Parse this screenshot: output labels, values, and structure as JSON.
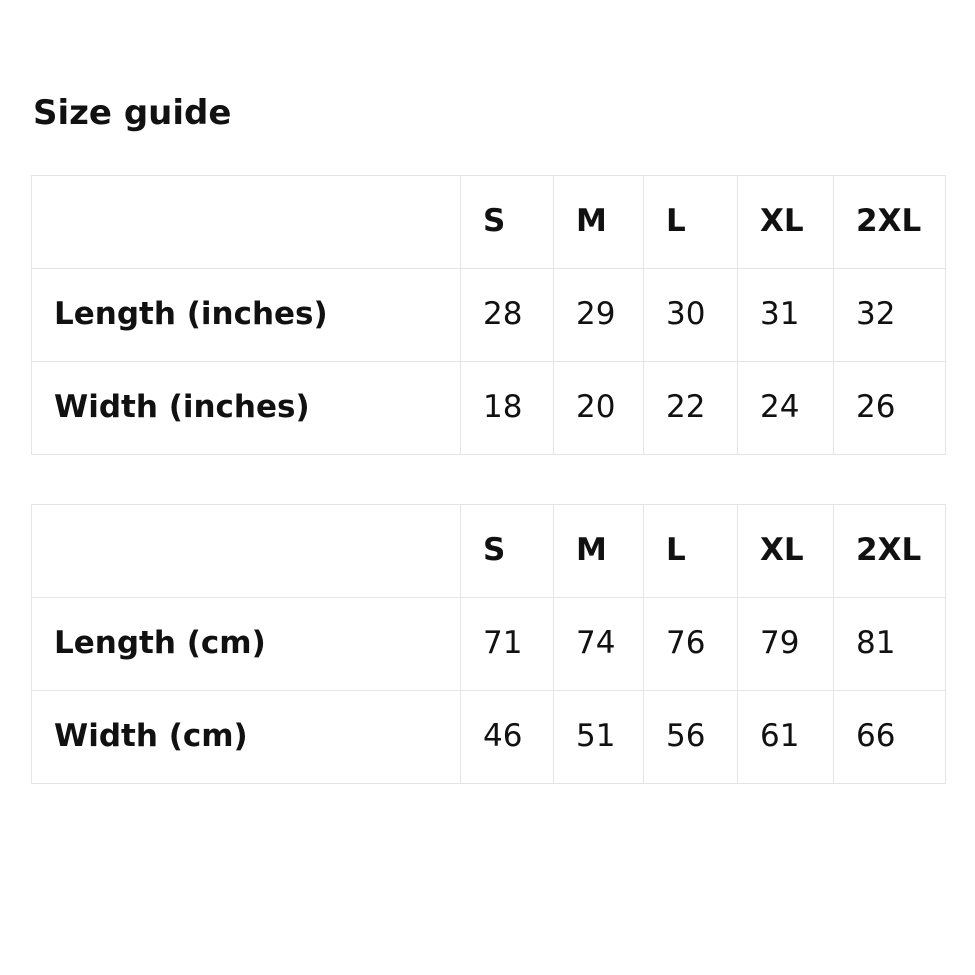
{
  "page": {
    "title": "Size guide",
    "background_color": "#ffffff",
    "text_color": "#111111",
    "table_border_color": "#e4e4e4"
  },
  "tables": [
    {
      "unit": "inches",
      "columns": [
        "",
        "S",
        "M",
        "L",
        "XL",
        "2XL"
      ],
      "rows": [
        {
          "label": "Length (inches)",
          "values": [
            "28",
            "29",
            "30",
            "31",
            "32"
          ]
        },
        {
          "label": "Width (inches)",
          "values": [
            "18",
            "20",
            "22",
            "24",
            "26"
          ]
        }
      ]
    },
    {
      "unit": "cm",
      "columns": [
        "",
        "S",
        "M",
        "L",
        "XL",
        "2XL"
      ],
      "rows": [
        {
          "label": "Length (cm)",
          "values": [
            "71",
            "74",
            "76",
            "79",
            "81"
          ]
        },
        {
          "label": "Width (cm)",
          "values": [
            "46",
            "51",
            "56",
            "61",
            "66"
          ]
        }
      ]
    }
  ]
}
